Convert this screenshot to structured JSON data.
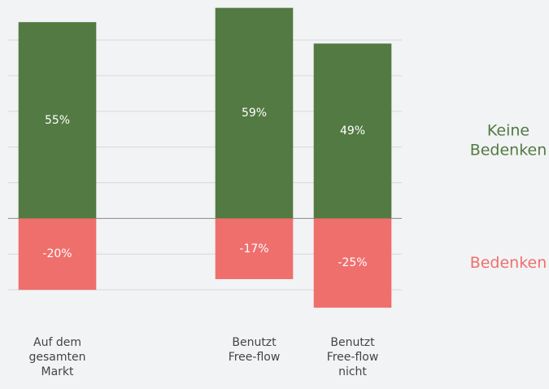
{
  "chart_data": {
    "type": "bar",
    "stacked": "diverging",
    "categories": [
      "Auf dem\ngesamten\nMarkt",
      null,
      "Benutzt\nFree-flow",
      "Benutzt\nFree-flow\nnicht"
    ],
    "series": [
      {
        "name": "Keine\nBedenken",
        "color": "#527a42",
        "values": [
          55,
          null,
          59,
          49
        ],
        "value_labels": [
          "55%",
          null,
          "59%",
          "49%"
        ]
      },
      {
        "name": "Bedenken",
        "color": "#ef6f6c",
        "values": [
          -20,
          null,
          -17,
          -25
        ],
        "value_labels": [
          "-20%",
          null,
          "-17%",
          "-25%"
        ]
      }
    ],
    "ylim": [
      -30,
      61.2
    ],
    "yticks": [
      -20,
      -10,
      0,
      10,
      20,
      30,
      40,
      50
    ],
    "grid": true,
    "legend": "right"
  }
}
